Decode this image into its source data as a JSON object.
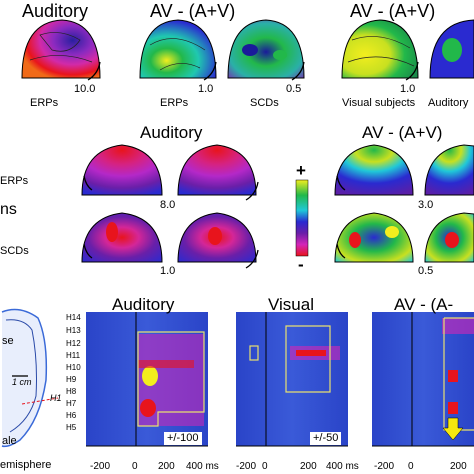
{
  "top_row": {
    "titles": [
      "Auditory",
      "AV - (A+V)",
      "AV - (A+V)"
    ],
    "captions": [
      "ERPs",
      "ERPs",
      "SCDs",
      "Visual subjects",
      "Auditory"
    ],
    "scales": [
      "10.0",
      "1.0",
      "0.5",
      "1.0"
    ]
  },
  "middle_row": {
    "titles": [
      "Auditory",
      "AV - (A+V)"
    ],
    "row_labels": [
      "ERPs",
      "ns",
      "SCDs"
    ],
    "scales_auditory": [
      "8.0",
      "1.0"
    ],
    "scales_av": [
      "3.0",
      "0.5"
    ],
    "colorbar": {
      "plus": "+",
      "minus": "-"
    }
  },
  "bottom_row": {
    "titles": [
      "Auditory",
      "Visual",
      "AV - (A-"
    ],
    "channel_labels": [
      "H14",
      "H13",
      "H12",
      "H11",
      "H10",
      "H9",
      "H8",
      "H7",
      "H6",
      "H5"
    ],
    "x_ticks": [
      "-200",
      "0",
      "200",
      "400 ms"
    ],
    "x_ticks_third": [
      "-200",
      "0",
      "200"
    ],
    "ranges": [
      "+/-100",
      "+/-50"
    ],
    "brain": {
      "labels": [
        "se",
        "1 cm",
        "H1",
        "ale",
        "emisphere"
      ]
    }
  },
  "colors": {
    "red": "#e8141c",
    "magenta": "#d426b8",
    "purple": "#6a1fa8",
    "blue": "#2a2ad0",
    "cyan": "#20c8d8",
    "green": "#22b84a",
    "yellow": "#f2ee1e",
    "box_outline": "#e8e070",
    "arrow": "#f6e80e"
  }
}
